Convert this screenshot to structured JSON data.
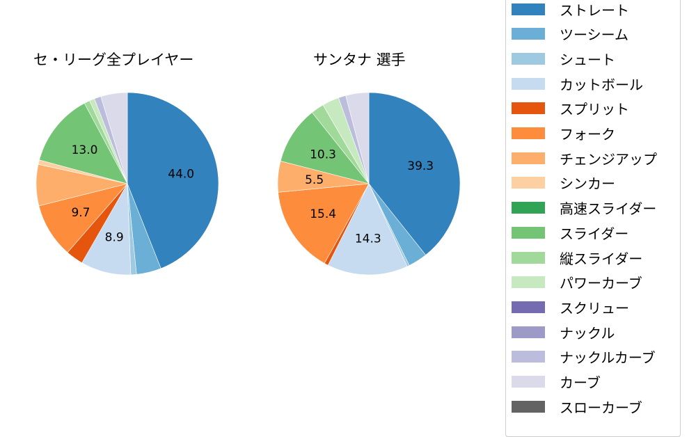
{
  "chart_data": [
    {
      "type": "pie",
      "title": "セ・リーグ全プレイヤー",
      "categories": [
        "ストレート",
        "ツーシーム",
        "シュート",
        "カットボール",
        "スプリット",
        "フォーク",
        "チェンジアップ",
        "シンカー",
        "高速スライダー",
        "スライダー",
        "縦スライダー",
        "パワーカーブ",
        "スクリュー",
        "ナックル",
        "ナックルカーブ",
        "カーブ",
        "スローカーブ"
      ],
      "values": [
        44.0,
        4.4,
        1.0,
        8.9,
        3.1,
        9.7,
        7.3,
        0.8,
        0.0,
        13.0,
        1.0,
        0.9,
        0.0,
        0.0,
        1.2,
        4.7,
        0.0
      ],
      "labeled_values": {
        "ストレート": "44.0",
        "カットボール": "8.9",
        "フォーク": "9.7",
        "スライダー": "13.0"
      },
      "start_angle": 90,
      "direction": "clockwise"
    },
    {
      "type": "pie",
      "title": "サンタナ  選手",
      "categories": [
        "ストレート",
        "ツーシーム",
        "シュート",
        "カットボール",
        "スプリット",
        "フォーク",
        "チェンジアップ",
        "シンカー",
        "高速スライダー",
        "スライダー",
        "縦スライダー",
        "パワーカーブ",
        "スクリュー",
        "ナックル",
        "ナックルカーブ",
        "カーブ",
        "スローカーブ"
      ],
      "values": [
        39.3,
        3.4,
        0.4,
        14.3,
        0.7,
        15.4,
        5.5,
        0.0,
        0.0,
        10.3,
        2.3,
        3.0,
        0.0,
        0.0,
        1.3,
        4.1,
        0.0
      ],
      "labeled_values": {
        "ストレート": "39.3",
        "カットボール": "14.3",
        "フォーク": "15.4",
        "チェンジアップ": "5.5",
        "スライダー": "10.3"
      },
      "start_angle": 90,
      "direction": "clockwise"
    }
  ],
  "charts": {
    "left": {
      "title": "セ・リーグ全プレイヤー"
    },
    "right": {
      "title": "サンタナ  選手"
    }
  },
  "legend": {
    "position": "right",
    "items": [
      {
        "label": "ストレート",
        "color": "#3182bd"
      },
      {
        "label": "ツーシーム",
        "color": "#6baed6"
      },
      {
        "label": "シュート",
        "color": "#9ecae1"
      },
      {
        "label": "カットボール",
        "color": "#c6dbef"
      },
      {
        "label": "スプリット",
        "color": "#e6550d"
      },
      {
        "label": "フォーク",
        "color": "#fd8d3c"
      },
      {
        "label": "チェンジアップ",
        "color": "#fdae6b"
      },
      {
        "label": "シンカー",
        "color": "#fdd0a2"
      },
      {
        "label": "高速スライダー",
        "color": "#31a354"
      },
      {
        "label": "スライダー",
        "color": "#74c476"
      },
      {
        "label": "縦スライダー",
        "color": "#a1d99b"
      },
      {
        "label": "パワーカーブ",
        "color": "#c7e9c0"
      },
      {
        "label": "スクリュー",
        "color": "#756bb1"
      },
      {
        "label": "ナックル",
        "color": "#9e9ac8"
      },
      {
        "label": "ナックルカーブ",
        "color": "#bcbddc"
      },
      {
        "label": "カーブ",
        "color": "#dadaeb"
      },
      {
        "label": "スローカーブ",
        "color": "#636363"
      }
    ]
  }
}
